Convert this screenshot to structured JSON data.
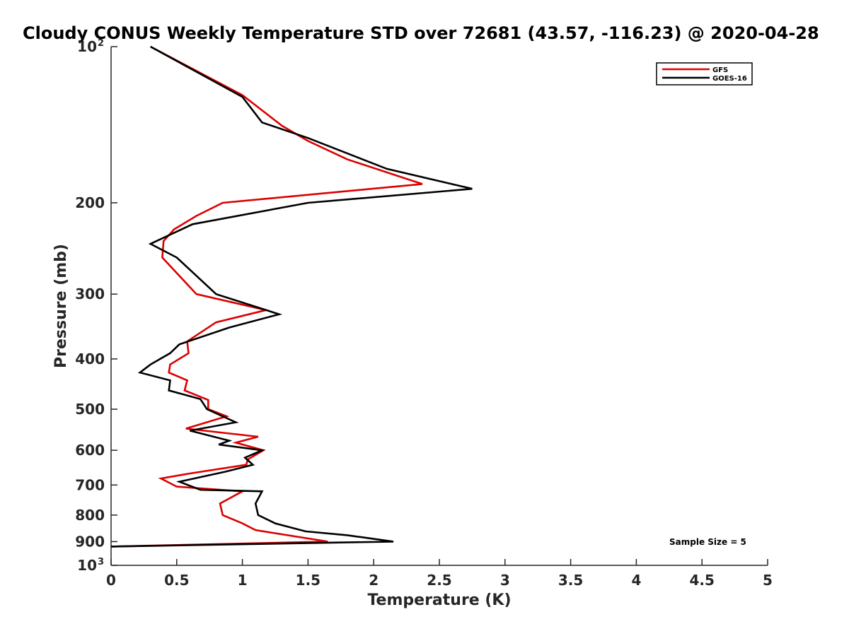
{
  "chart_data": {
    "type": "line",
    "title": "Cloudy CONUS Weekly Temperature STD over 72681 (43.57, -116.23) @ 2020-04-28",
    "xlabel": "Temperature (K)",
    "ylabel": "Pressure (mb)",
    "xlim": [
      0,
      5
    ],
    "ylim": [
      100,
      1000
    ],
    "y_scale": "log",
    "y_reversed": true,
    "x_ticks": [
      "0",
      "0.5",
      "1",
      "1.5",
      "2",
      "2.5",
      "3",
      "3.5",
      "4",
      "4.5",
      "5"
    ],
    "y_ticks": [
      {
        "value": 100,
        "label": "10",
        "sup": "2"
      },
      {
        "value": 200,
        "label": "200",
        "sup": ""
      },
      {
        "value": 300,
        "label": "300",
        "sup": ""
      },
      {
        "value": 400,
        "label": "400",
        "sup": ""
      },
      {
        "value": 500,
        "label": "500",
        "sup": ""
      },
      {
        "value": 600,
        "label": "600",
        "sup": ""
      },
      {
        "value": 700,
        "label": "700",
        "sup": ""
      },
      {
        "value": 800,
        "label": "800",
        "sup": ""
      },
      {
        "value": 900,
        "label": "900",
        "sup": ""
      },
      {
        "value": 1000,
        "label": "10",
        "sup": "3"
      }
    ],
    "legend_position": "top-right",
    "annotation": "Sample Size = 5",
    "series": [
      {
        "name": "GFS",
        "color": "#dd0000",
        "points": [
          [
            0.3,
            100
          ],
          [
            1.0,
            124
          ],
          [
            1.3,
            142
          ],
          [
            1.5,
            152
          ],
          [
            1.8,
            165
          ],
          [
            2.37,
            184
          ],
          [
            0.85,
            200
          ],
          [
            0.65,
            212
          ],
          [
            0.48,
            225
          ],
          [
            0.4,
            237
          ],
          [
            0.39,
            255
          ],
          [
            0.65,
            300
          ],
          [
            1.18,
            322
          ],
          [
            0.8,
            340
          ],
          [
            0.58,
            370
          ],
          [
            0.59,
            390
          ],
          [
            0.45,
            410
          ],
          [
            0.44,
            425
          ],
          [
            0.58,
            440
          ],
          [
            0.56,
            460
          ],
          [
            0.74,
            480
          ],
          [
            0.74,
            500
          ],
          [
            0.88,
            516
          ],
          [
            0.57,
            545
          ],
          [
            1.12,
            565
          ],
          [
            0.95,
            580
          ],
          [
            1.16,
            600
          ],
          [
            1.04,
            625
          ],
          [
            1.03,
            640
          ],
          [
            0.6,
            665
          ],
          [
            0.38,
            680
          ],
          [
            0.5,
            705
          ],
          [
            1.0,
            720
          ],
          [
            0.83,
            760
          ],
          [
            0.85,
            800
          ],
          [
            1.0,
            830
          ],
          [
            1.1,
            855
          ],
          [
            1.65,
            900
          ],
          [
            0.0,
            920
          ]
        ]
      },
      {
        "name": "GOES-16",
        "color": "#000000",
        "points": [
          [
            0.3,
            100
          ],
          [
            1.0,
            125
          ],
          [
            1.15,
            140
          ],
          [
            1.5,
            150
          ],
          [
            2.1,
            172
          ],
          [
            2.75,
            188
          ],
          [
            1.5,
            200
          ],
          [
            0.62,
            220
          ],
          [
            0.3,
            240
          ],
          [
            0.5,
            255
          ],
          [
            0.8,
            300
          ],
          [
            1.28,
            328
          ],
          [
            0.9,
            348
          ],
          [
            0.52,
            375
          ],
          [
            0.45,
            390
          ],
          [
            0.3,
            410
          ],
          [
            0.22,
            425
          ],
          [
            0.45,
            440
          ],
          [
            0.44,
            460
          ],
          [
            0.68,
            478
          ],
          [
            0.73,
            500
          ],
          [
            0.95,
            530
          ],
          [
            0.6,
            550
          ],
          [
            0.9,
            575
          ],
          [
            0.82,
            585
          ],
          [
            1.15,
            600
          ],
          [
            1.02,
            620
          ],
          [
            1.08,
            640
          ],
          [
            0.87,
            660
          ],
          [
            0.52,
            690
          ],
          [
            0.68,
            715
          ],
          [
            1.15,
            720
          ],
          [
            1.1,
            760
          ],
          [
            1.12,
            800
          ],
          [
            1.25,
            830
          ],
          [
            1.48,
            860
          ],
          [
            1.8,
            875
          ],
          [
            2.15,
            900
          ],
          [
            0.0,
            920
          ]
        ]
      }
    ]
  }
}
